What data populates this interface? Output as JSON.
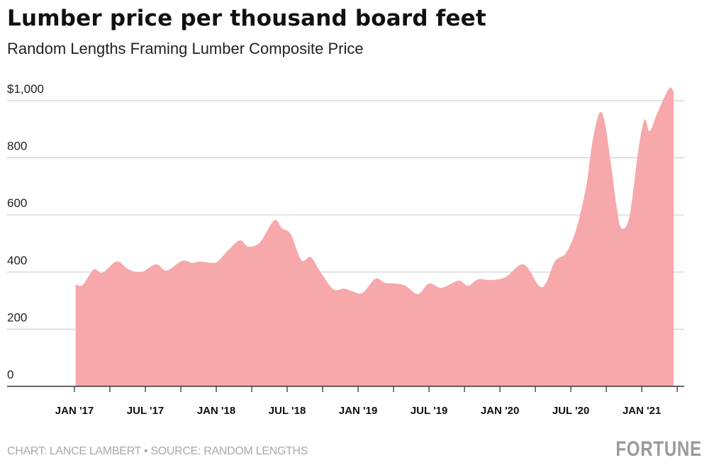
{
  "chart_data": {
    "type": "area",
    "title": "Lumber price per thousand board feet",
    "subtitle": "Random Lengths Framing Lumber Composite Price",
    "xlabel": "",
    "ylabel": "",
    "ylim": [
      0,
      1000
    ],
    "yticks": [
      0,
      200,
      400,
      600,
      800,
      1000
    ],
    "ytick_labels": [
      "0",
      "200",
      "400",
      "600",
      "800",
      "$1,000"
    ],
    "xticks_start": "2017-01",
    "xticks_end": "2021-04",
    "xtick_labels": [
      "JAN '17",
      "JUL '17",
      "JAN '18",
      "JUL '18",
      "JAN '19",
      "JUL '19",
      "JAN '20",
      "JUL '20",
      "JAN '21"
    ],
    "grid": true,
    "fill_color": "#f6a8ab",
    "series": [
      {
        "x": [
          "2017-01-04",
          "2017-01-22",
          "2017-02-20",
          "2017-03-12",
          "2017-04-18",
          "2017-05-19",
          "2017-06-21",
          "2017-07-28",
          "2017-08-25",
          "2017-10-04",
          "2017-11-01",
          "2017-11-19",
          "2017-12-22",
          "2018-01-06",
          "2018-02-03",
          "2018-03-01",
          "2018-03-22",
          "2018-04-22",
          "2018-05-28",
          "2018-06-18",
          "2018-07-10",
          "2018-08-07",
          "2018-08-31",
          "2018-09-27",
          "2018-10-28",
          "2018-11-25",
          "2018-12-18",
          "2019-01-13",
          "2019-02-15",
          "2019-03-09",
          "2019-04-04",
          "2019-05-01",
          "2019-06-03",
          "2019-07-01",
          "2019-08-03",
          "2019-09-16",
          "2019-10-10",
          "2019-11-06",
          "2019-12-07",
          "2020-01-15",
          "2020-03-01",
          "2020-04-10",
          "2020-04-28",
          "2020-05-21",
          "2020-06-18",
          "2020-07-15",
          "2020-08-10",
          "2020-08-25",
          "2020-09-12",
          "2020-09-25",
          "2020-10-10",
          "2020-10-28",
          "2020-11-10",
          "2020-11-30",
          "2020-12-22",
          "2021-01-08",
          "2021-01-21",
          "2021-02-10",
          "2021-03-10",
          "2021-03-22"
        ],
        "y": [
          357,
          355,
          409,
          397,
          437,
          409,
          400,
          427,
          405,
          439,
          432,
          437,
          432,
          439,
          479,
          511,
          489,
          504,
          581,
          553,
          533,
          442,
          452,
          397,
          340,
          342,
          332,
          328,
          377,
          362,
          360,
          352,
          323,
          360,
          345,
          370,
          352,
          375,
          372,
          382,
          427,
          352,
          362,
          439,
          466,
          551,
          700,
          849,
          953,
          938,
          806,
          620,
          553,
          596,
          824,
          933,
          893,
          955,
          1042,
          1030
        ]
      }
    ]
  },
  "footer": "CHART: LANCE LAMBERT • SOURCE: RANDOM LENGTHS",
  "logo": "FORTUNE"
}
